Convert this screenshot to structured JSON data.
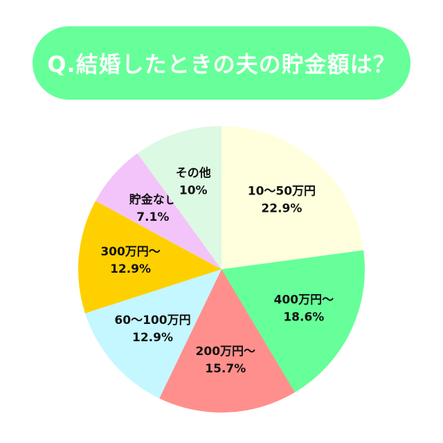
{
  "chart_data": {
    "type": "pie",
    "title": "Q.結婚したときの夫の貯金額は？",
    "slices": [
      {
        "name": "10〜50万円",
        "value": 22.9,
        "label": "22.9%",
        "color": "#ffffdd"
      },
      {
        "name": "400万円〜",
        "value": 18.6,
        "label": "18.6%",
        "color": "#66ff99"
      },
      {
        "name": "200万円〜",
        "value": 15.7,
        "label": "15.7%",
        "color": "#ff8f8c"
      },
      {
        "name": "60〜100万円",
        "value": 12.9,
        "label": "12.9%",
        "color": "#c4f7ff"
      },
      {
        "name": "300万円〜",
        "value": 12.9,
        "label": "12.9%",
        "color": "#ffd000"
      },
      {
        "name": "貯金なし",
        "value": 7.1,
        "label": "7.1%",
        "color": "#f2c4f9"
      },
      {
        "name": "その他",
        "value": 10,
        "label": "10%",
        "color": "#dcf9e3"
      }
    ],
    "start": "12 o'clock",
    "direction": "clockwise"
  }
}
